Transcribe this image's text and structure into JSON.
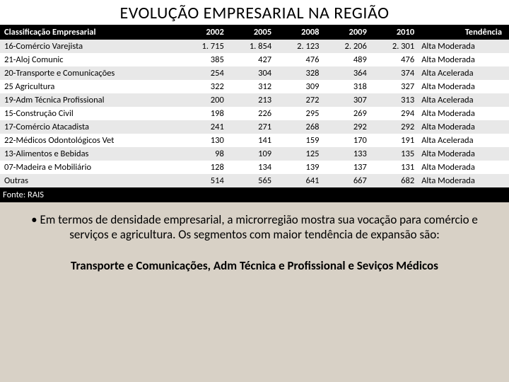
{
  "title": "EVOLUÇÃO EMPRESARIAL NA  REGIÃO",
  "table": {
    "headers": [
      "Classificação Empresarial",
      "2002",
      "2005",
      "2008",
      "2009",
      "2010",
      "Tendência"
    ],
    "rows": [
      [
        "16-Comércio Varejista",
        "1. 715",
        "1. 854",
        "2. 123",
        "2. 206",
        "2. 301",
        "Alta Moderada"
      ],
      [
        "21-Aloj Comunic",
        "385",
        "427",
        "476",
        "489",
        "476",
        "Alta Moderada"
      ],
      [
        "20-Transporte e Comunicações",
        "254",
        "304",
        "328",
        "364",
        "374",
        "Alta Acelerada"
      ],
      [
        "25 Agricultura",
        "322",
        "312",
        "309",
        "318",
        "327",
        "Alta Moderada"
      ],
      [
        "19-Adm Técnica Profissional",
        "200",
        "213",
        "272",
        "307",
        "313",
        "Alta Acelerada"
      ],
      [
        "15-Construção Civil",
        "198",
        "226",
        "295",
        "269",
        "294",
        "Alta Moderada"
      ],
      [
        "17-Comércio Atacadista",
        "241",
        "271",
        "268",
        "292",
        "292",
        "Alta Moderada"
      ],
      [
        "22-Médicos Odontológicos Vet",
        "130",
        "141",
        "159",
        "170",
        "191",
        "Alta Acelerada"
      ],
      [
        "13-Alimentos e Bebidas",
        "98",
        "109",
        "125",
        "133",
        "135",
        "Alta Moderada"
      ],
      [
        "07-Madeira e Mobiliário",
        "128",
        "134",
        "139",
        "137",
        "131",
        "Alta Moderada"
      ],
      [
        "Outras",
        "514",
        "565",
        "641",
        "667",
        "682",
        "Alta Moderada"
      ]
    ],
    "source": "Fonte: RAIS",
    "row_colors": {
      "even": "#e8e8e8",
      "odd": "#ffffff"
    },
    "header_bg": "#000000",
    "header_fg": "#ffffff"
  },
  "paragraph1": "• Em termos de densidade empresarial, a microrregião mostra sua vocação para comércio e serviços e agricultura. Os segmentos com maior tendência de expansão são:",
  "paragraph2": "Transporte e Comunicações, Adm Técnica e Profissional e Seviços Médicos",
  "colors": {
    "slide_bg": "#d8d1c6",
    "text": "#000000"
  },
  "fonts": {
    "title_size_pt": 24,
    "body_size_pt": 17,
    "table_size_pt": 12.5
  }
}
